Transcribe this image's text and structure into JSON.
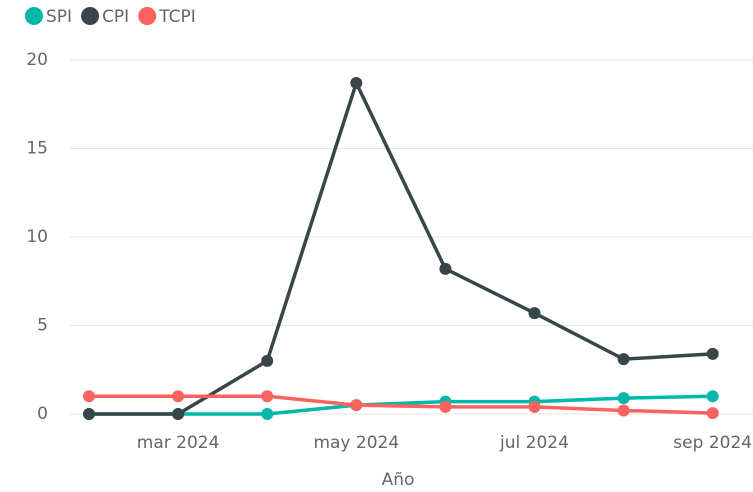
{
  "chart_data": {
    "type": "line",
    "categories": [
      null,
      "mar 2024",
      null,
      "may 2024",
      null,
      "jul 2024",
      null,
      "sep 2024"
    ],
    "series": [
      {
        "name": "SPI",
        "color": "#01B8AA",
        "values": [
          0,
          0,
          0,
          0.5,
          0.7,
          0.7,
          0.9,
          1.0
        ]
      },
      {
        "name": "CPI",
        "color": "#374649",
        "values": [
          0,
          0,
          3.0,
          18.7,
          8.2,
          5.7,
          3.1,
          3.4
        ]
      },
      {
        "name": "TCPI",
        "color": "#FD625E",
        "values": [
          1.0,
          1.0,
          1.0,
          0.5,
          0.4,
          0.4,
          0.2,
          0.05
        ]
      }
    ],
    "xlabel": "Año",
    "ylim": [
      0,
      20
    ],
    "yticks": [
      0,
      5,
      10,
      15,
      20
    ],
    "grid": true,
    "legend": "top-left"
  }
}
